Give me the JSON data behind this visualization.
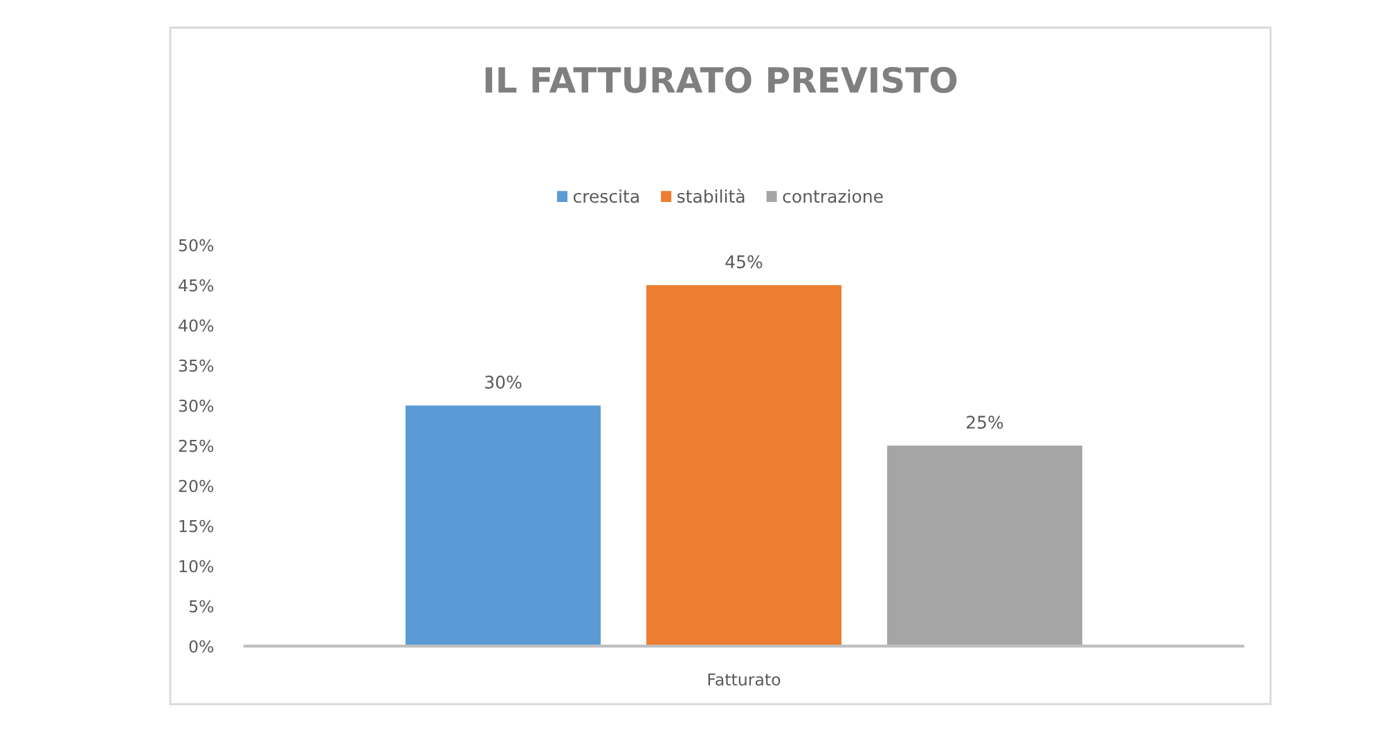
{
  "chart_data": {
    "type": "bar",
    "title": "IL FATTURATO PREVISTO",
    "categories": [
      "Fatturato"
    ],
    "series": [
      {
        "name": "crescita",
        "color": "#5b9bd5",
        "values": [
          30
        ],
        "value_labels": [
          "30%"
        ]
      },
      {
        "name": "stabilità",
        "color": "#ed7d31",
        "values": [
          45
        ],
        "value_labels": [
          "45%"
        ]
      },
      {
        "name": "contrazione",
        "color": "#a5a5a5",
        "values": [
          25
        ],
        "value_labels": [
          "25%"
        ]
      }
    ],
    "ylim": [
      0,
      50
    ],
    "yticks": [
      {
        "value": 0,
        "label": "0%"
      },
      {
        "value": 5,
        "label": "5%"
      },
      {
        "value": 10,
        "label": "10%"
      },
      {
        "value": 15,
        "label": "15%"
      },
      {
        "value": 20,
        "label": "20%"
      },
      {
        "value": 25,
        "label": "25%"
      },
      {
        "value": 30,
        "label": "30%"
      },
      {
        "value": 35,
        "label": "35%"
      },
      {
        "value": 40,
        "label": "40%"
      },
      {
        "value": 45,
        "label": "45%"
      },
      {
        "value": 50,
        "label": "50%"
      }
    ],
    "legend": "top"
  }
}
